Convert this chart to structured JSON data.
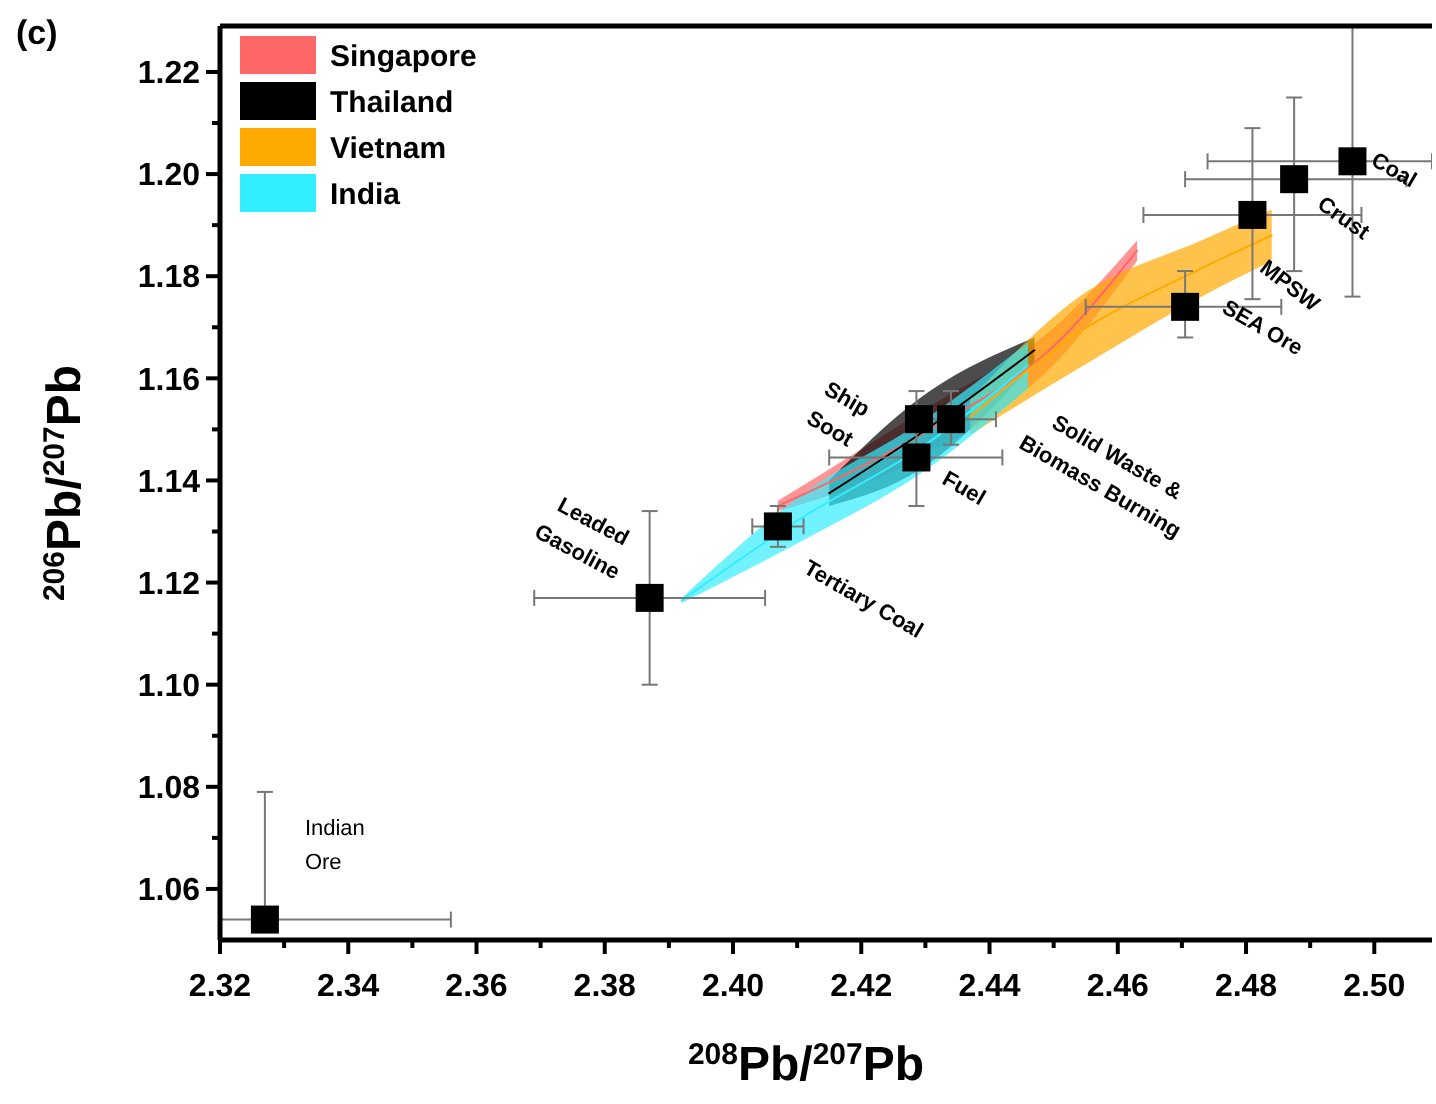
{
  "chart_data": {
    "type": "scatter",
    "title": "(c)",
    "xlabel": "$^{208}$Pb/$^{207}$Pb",
    "ylabel": "$^{206}$Pb/$^{207}$Pb",
    "xlim": [
      2.32,
      2.509
    ],
    "ylim": [
      1.05,
      1.229
    ],
    "xticks": [
      2.32,
      {
        "value": 2.33,
        "label": null
      },
      2.34,
      {
        "value": 2.35,
        "label": null
      },
      2.36,
      {
        "value": 2.37,
        "label": null
      },
      2.38,
      {
        "value": 2.39,
        "label": null
      },
      {
        "value": 2.4,
        "label": "2.40"
      },
      {
        "value": 2.41,
        "label": null
      },
      2.42,
      {
        "value": 2.43,
        "label": null
      },
      2.44,
      {
        "value": 2.45,
        "label": null
      },
      2.46,
      {
        "value": 2.47,
        "label": null
      },
      2.48,
      {
        "value": 2.49,
        "label": null
      },
      {
        "value": 2.5,
        "label": "2.50"
      }
    ],
    "yticks": [
      1.06,
      {
        "value": 1.07,
        "label": null
      },
      1.08,
      {
        "value": 1.09,
        "label": null
      },
      {
        "value": 1.1,
        "label": "1.10"
      },
      {
        "value": 1.11,
        "label": null
      },
      1.12,
      {
        "value": 1.13,
        "label": null
      },
      1.14,
      {
        "value": 1.15,
        "label": null
      },
      1.16,
      {
        "value": 1.17,
        "label": null
      },
      1.18,
      {
        "value": 1.19,
        "label": null
      },
      {
        "value": 1.2,
        "label": "1.20"
      },
      {
        "value": 1.21,
        "label": null
      },
      1.22
    ],
    "grid": false,
    "legend": "top left",
    "series": [
      {
        "name": "Singapore",
        "type": "line",
        "color": "#ff6666",
        "x": [
          2.407,
          2.43,
          2.451,
          2.463
        ],
        "values": [
          1.135,
          1.1495,
          1.1675,
          1.185
        ],
        "lower": [
          1.134,
          1.145,
          1.164,
          1.183
        ],
        "upper": [
          1.136,
          1.154,
          1.171,
          1.187
        ]
      },
      {
        "name": "Thailand",
        "type": "line",
        "color": "#000000",
        "x": [
          2.415,
          2.429,
          2.447
        ],
        "values": [
          1.1375,
          1.149,
          1.1655
        ],
        "lower": [
          1.135,
          1.142,
          1.163
        ],
        "upper": [
          1.14,
          1.156,
          1.168
        ]
      },
      {
        "name": "Vietnam",
        "type": "line",
        "color": "#ffaa00",
        "x": [
          2.437,
          2.454,
          2.473,
          2.484
        ],
        "values": [
          1.1525,
          1.169,
          1.1815,
          1.188
        ],
        "lower": [
          1.149,
          1.162,
          1.176,
          1.183
        ],
        "upper": [
          1.156,
          1.176,
          1.187,
          1.193
        ]
      },
      {
        "name": "India",
        "type": "line",
        "color": "#33eeff",
        "x": [
          2.392,
          2.4105,
          2.43,
          2.446
        ],
        "values": [
          1.1165,
          1.1325,
          1.147,
          1.1625
        ],
        "lower": [
          1.116,
          1.128,
          1.142,
          1.158
        ],
        "upper": [
          1.117,
          1.137,
          1.152,
          1.167
        ]
      },
      {
        "marker": "square",
        "color": "#000000",
        "x": [
          2.327,
          2.387,
          2.407,
          2.429,
          2.4286,
          2.434,
          2.4705,
          2.481,
          2.4875,
          2.4966
        ],
        "values": [
          1.054,
          1.117,
          1.131,
          1.152,
          1.1445,
          1.152,
          1.174,
          1.192,
          1.199,
          1.2025
        ],
        "errors": [
          [
            1.054,
            1.079
          ],
          [
            1.1,
            1.134
          ],
          [
            1.127,
            1.135
          ],
          null,
          [
            1.135,
            1.1575
          ],
          [
            1.147,
            1.1575
          ],
          [
            1.168,
            1.181
          ],
          [
            1.1755,
            1.209
          ],
          [
            1.181,
            1.215
          ],
          [
            1.176,
            1.229
          ]
        ],
        "xerrors": [
          [
            2.32,
            2.356
          ],
          [
            2.369,
            2.405
          ],
          [
            2.403,
            2.411
          ],
          null,
          [
            2.415,
            2.442
          ],
          [
            2.427,
            2.441
          ],
          [
            2.455,
            2.4855
          ],
          [
            2.464,
            2.498
          ],
          [
            2.4705,
            2.505
          ],
          [
            2.474,
            2.509
          ]
        ]
      }
    ],
    "annotations": [
      {
        "text": "Indian\nOre",
        "x": 2.327,
        "y": 1.054
      },
      {
        "text": "Leaded\nGasoline",
        "x": 2.387,
        "y": 1.117
      },
      {
        "text": "Tertiary Coal",
        "x": 2.407,
        "y": 1.131
      },
      {
        "text": "Ship\nSoot",
        "x": 2.429,
        "y": 1.152
      },
      {
        "text": "Fuel",
        "x": 2.4286,
        "y": 1.1445
      },
      {
        "text": "Solid Waste &\nBiomass Burning",
        "x": 2.434,
        "y": 1.152
      },
      {
        "text": "SEA Ore",
        "x": 2.4705,
        "y": 1.174
      },
      {
        "text": "MPSW",
        "x": 2.481,
        "y": 1.192
      },
      {
        "text": "Crust",
        "x": 2.4875,
        "y": 1.199
      },
      {
        "text": "Coal",
        "x": 2.4966,
        "y": 1.2025
      }
    ]
  }
}
